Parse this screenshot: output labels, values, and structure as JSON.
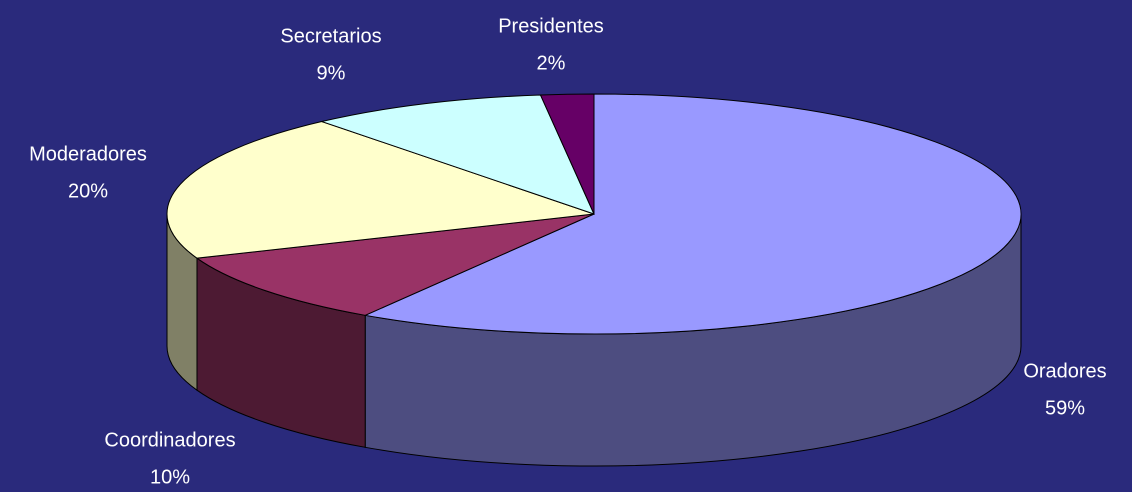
{
  "chart_data": {
    "type": "pie",
    "categories": [
      "Oradores",
      "Coordinadores",
      "Moderadores",
      "Secretarios",
      "Presidentes"
    ],
    "values": [
      59,
      10,
      20,
      9,
      2
    ],
    "value_labels": [
      "59%",
      "10%",
      "20%",
      "9%",
      "2%"
    ],
    "colors": [
      "#9999ff",
      "#993366",
      "#ffffcc",
      "#ccffff",
      "#660066"
    ]
  }
}
